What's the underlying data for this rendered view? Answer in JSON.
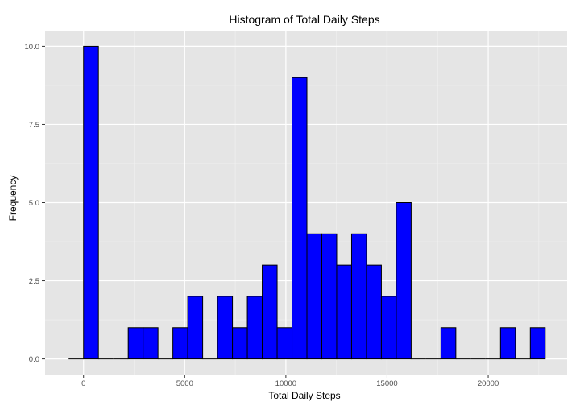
{
  "chart_data": {
    "type": "bar",
    "title": "Histogram of Total Daily Steps",
    "xlabel": "Total Daily Steps",
    "ylabel": "Frequency",
    "bin_width": 736,
    "bins": [
      {
        "start": -736,
        "end": 0,
        "count": 0
      },
      {
        "start": 0,
        "end": 736,
        "count": 10
      },
      {
        "start": 736,
        "end": 1472,
        "count": 0
      },
      {
        "start": 1472,
        "end": 2208,
        "count": 0
      },
      {
        "start": 2208,
        "end": 2944,
        "count": 1
      },
      {
        "start": 2944,
        "end": 3680,
        "count": 1
      },
      {
        "start": 3680,
        "end": 4416,
        "count": 0
      },
      {
        "start": 4416,
        "end": 5152,
        "count": 1
      },
      {
        "start": 5152,
        "end": 5888,
        "count": 2
      },
      {
        "start": 5888,
        "end": 6624,
        "count": 0
      },
      {
        "start": 6624,
        "end": 7360,
        "count": 2
      },
      {
        "start": 7360,
        "end": 8096,
        "count": 1
      },
      {
        "start": 8096,
        "end": 8832,
        "count": 2
      },
      {
        "start": 8832,
        "end": 9568,
        "count": 3
      },
      {
        "start": 9568,
        "end": 10304,
        "count": 1
      },
      {
        "start": 10304,
        "end": 11040,
        "count": 9
      },
      {
        "start": 11040,
        "end": 11776,
        "count": 4
      },
      {
        "start": 11776,
        "end": 12512,
        "count": 4
      },
      {
        "start": 12512,
        "end": 13248,
        "count": 3
      },
      {
        "start": 13248,
        "end": 13984,
        "count": 4
      },
      {
        "start": 13984,
        "end": 14720,
        "count": 3
      },
      {
        "start": 14720,
        "end": 15456,
        "count": 2
      },
      {
        "start": 15456,
        "end": 16192,
        "count": 5
      },
      {
        "start": 16192,
        "end": 16928,
        "count": 0
      },
      {
        "start": 16928,
        "end": 17664,
        "count": 0
      },
      {
        "start": 17664,
        "end": 18400,
        "count": 1
      },
      {
        "start": 18400,
        "end": 19136,
        "count": 0
      },
      {
        "start": 19136,
        "end": 19872,
        "count": 0
      },
      {
        "start": 19872,
        "end": 20608,
        "count": 0
      },
      {
        "start": 20608,
        "end": 21344,
        "count": 1
      },
      {
        "start": 21344,
        "end": 22080,
        "count": 0
      },
      {
        "start": 22080,
        "end": 22816,
        "count": 1
      }
    ],
    "xlim": [
      -1900,
      23900
    ],
    "ylim": [
      -0.5,
      10.5
    ],
    "x_ticks": [
      0,
      5000,
      10000,
      15000,
      20000
    ],
    "x_tick_labels": [
      "0",
      "5000",
      "10000",
      "15000",
      "20000"
    ],
    "y_ticks": [
      0,
      2.5,
      5,
      7.5,
      10
    ],
    "y_tick_labels": [
      "0.0",
      "2.5",
      "5.0",
      "7.5",
      "10.0"
    ],
    "grid": true,
    "colors": {
      "bar_fill": "#0000ff",
      "bar_outline": "#000000",
      "panel_background": "#e5e5e5",
      "grid_major": "#ffffff",
      "grid_minor": "#f2f2f2"
    }
  }
}
